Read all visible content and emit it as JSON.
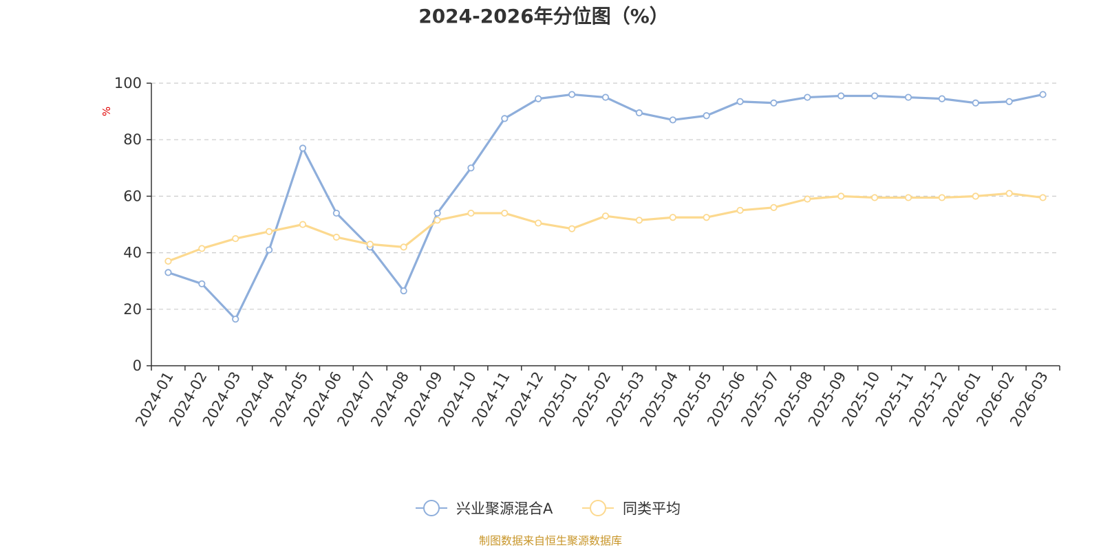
{
  "chart_data": {
    "type": "line",
    "title": "2024-2026年分位图（%）",
    "ylabel": "%",
    "xlabel": "",
    "ylim": [
      0,
      100
    ],
    "yticks": [
      0,
      20,
      40,
      60,
      80,
      100
    ],
    "grid": true,
    "legend_position": "bottom",
    "categories": [
      "2024-01",
      "2024-02",
      "2024-03",
      "2024-04",
      "2024-05",
      "2024-06",
      "2024-07",
      "2024-08",
      "2024-09",
      "2024-10",
      "2024-11",
      "2024-12",
      "2025-01",
      "2025-02",
      "2025-03",
      "2025-04",
      "2025-05",
      "2025-06",
      "2025-07",
      "2025-08",
      "2025-09",
      "2025-10",
      "2025-11",
      "2025-12",
      "2026-01",
      "2026-02",
      "2026-03"
    ],
    "series": [
      {
        "name": "兴业聚源混合A",
        "color": "#8eaedb",
        "values": [
          33,
          29,
          16.5,
          41,
          77,
          54,
          42,
          26.5,
          54,
          70,
          87.5,
          94.5,
          96,
          95,
          89.5,
          87,
          88.5,
          93.5,
          93,
          95,
          95.5,
          95.5,
          95,
          94.5,
          93,
          93.5,
          96
        ]
      },
      {
        "name": "同类平均",
        "color": "#fcd98f",
        "values": [
          37,
          41.5,
          45,
          47.5,
          50,
          45.5,
          43,
          42,
          51.5,
          54,
          54,
          50.5,
          48.5,
          53,
          51.5,
          52.5,
          52.5,
          55,
          56,
          59,
          60,
          59.5,
          59.5,
          59.5,
          60,
          61,
          59.5
        ]
      }
    ]
  },
  "source": "制图数据来自恒生聚源数据库"
}
